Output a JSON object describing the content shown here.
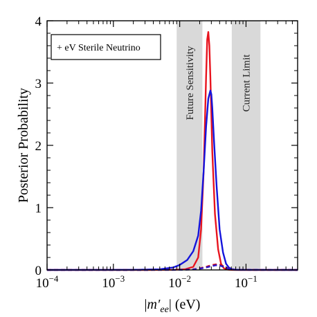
{
  "chart_data": {
    "type": "line",
    "title": "",
    "xlabel": "|m′ee| (eV)",
    "xlabel_parts": {
      "prefix": "|",
      "m": "m′",
      "sub": "ee",
      "suffix": "| (eV)"
    },
    "ylabel": "Posterior Probability",
    "x_scale": "log",
    "xlim": [
      0.0001,
      0.6
    ],
    "ylim": [
      0,
      4
    ],
    "x_ticks": [
      {
        "value": 0.0001,
        "base": "10",
        "exp": "−4"
      },
      {
        "value": 0.001,
        "base": "10",
        "exp": "−3"
      },
      {
        "value": 0.01,
        "base": "10",
        "exp": "−2"
      },
      {
        "value": 0.1,
        "base": "10",
        "exp": "−1"
      }
    ],
    "y_ticks": [
      {
        "value": 0,
        "label": "0"
      },
      {
        "value": 1,
        "label": "1"
      },
      {
        "value": 2,
        "label": "2"
      },
      {
        "value": 3,
        "label": "3"
      },
      {
        "value": 4,
        "label": "4"
      }
    ],
    "bands": [
      {
        "label": "Future Sensitivity",
        "xmin": 0.009,
        "xmax": 0.022,
        "color": "#d9d9d9"
      },
      {
        "label": "Current Limit",
        "xmin": 0.061,
        "xmax": 0.165,
        "color": "#d9d9d9"
      }
    ],
    "legend_box": {
      "text": "+ eV Sterile Neutrino",
      "placement": "top-left"
    },
    "series": [
      {
        "color": "#e8141e",
        "style": "solid",
        "x": [
          0.0001,
          0.003,
          0.008,
          0.012,
          0.016,
          0.019,
          0.021,
          0.023,
          0.025,
          0.026,
          0.027,
          0.028,
          0.029,
          0.031,
          0.034,
          0.038,
          0.042,
          0.046,
          0.05,
          0.055,
          0.06,
          0.07,
          0.6
        ],
        "y": [
          0,
          0,
          0.002,
          0.01,
          0.05,
          0.2,
          0.65,
          1.6,
          3.1,
          3.7,
          3.82,
          3.6,
          3.1,
          1.9,
          0.9,
          0.33,
          0.1,
          0.03,
          0.01,
          0.003,
          0.001,
          0,
          0
        ]
      },
      {
        "color": "#1414dc",
        "style": "solid",
        "x": [
          0.0001,
          0.002,
          0.005,
          0.008,
          0.01,
          0.013,
          0.016,
          0.019,
          0.021,
          0.023,
          0.025,
          0.027,
          0.029,
          0.03,
          0.031,
          0.033,
          0.036,
          0.04,
          0.045,
          0.05,
          0.055,
          0.06,
          0.07,
          0.08,
          0.6
        ],
        "y": [
          0,
          0.002,
          0.01,
          0.04,
          0.08,
          0.16,
          0.3,
          0.55,
          0.95,
          1.6,
          2.3,
          2.75,
          2.88,
          2.82,
          2.6,
          2.05,
          1.35,
          0.65,
          0.28,
          0.1,
          0.04,
          0.015,
          0.004,
          0.001,
          0
        ]
      },
      {
        "color": "#d0141e",
        "style": "dashed",
        "x": [
          0.0001,
          0.003,
          0.008,
          0.012,
          0.016,
          0.02,
          0.025,
          0.03,
          0.035,
          0.04,
          0.045,
          0.05,
          0.055,
          0.06,
          0.07,
          0.6
        ],
        "y": [
          0,
          0,
          0.001,
          0.004,
          0.01,
          0.025,
          0.05,
          0.075,
          0.09,
          0.085,
          0.065,
          0.04,
          0.02,
          0.008,
          0.002,
          0
        ]
      },
      {
        "color": "#2a14c8",
        "style": "dashed",
        "x": [
          0.0001,
          0.003,
          0.008,
          0.012,
          0.016,
          0.02,
          0.025,
          0.03,
          0.035,
          0.04,
          0.045,
          0.05,
          0.055,
          0.06,
          0.07,
          0.6
        ],
        "y": [
          0,
          0,
          0.001,
          0.003,
          0.008,
          0.02,
          0.04,
          0.06,
          0.075,
          0.07,
          0.055,
          0.035,
          0.018,
          0.007,
          0.002,
          0
        ]
      }
    ]
  }
}
